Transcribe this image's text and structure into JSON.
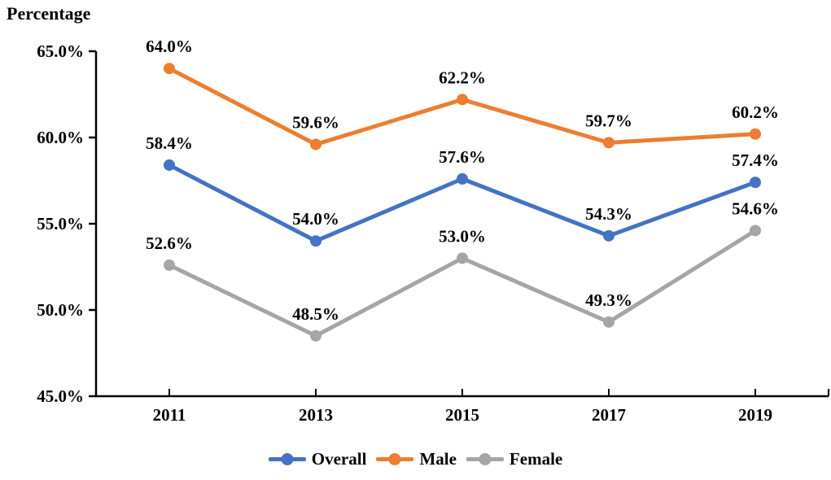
{
  "chart_data": {
    "type": "line",
    "ylabel": "Percentage",
    "categories": [
      "2011",
      "2013",
      "2015",
      "2017",
      "2019"
    ],
    "series": [
      {
        "name": "Overall",
        "color": "#4472C4",
        "values": [
          58.4,
          54.0,
          57.6,
          54.3,
          57.4
        ]
      },
      {
        "name": "Male",
        "color": "#ED7D31",
        "values": [
          64.0,
          59.6,
          62.2,
          59.7,
          60.2
        ]
      },
      {
        "name": "Female",
        "color": "#A5A5A5",
        "values": [
          52.6,
          48.5,
          53.0,
          49.3,
          54.6
        ]
      }
    ],
    "data_labels": {
      "Overall": [
        "58.4%",
        "54.0%",
        "57.6%",
        "54.3%",
        "57.4%"
      ],
      "Male": [
        "64.0%",
        "59.6%",
        "62.2%",
        "59.7%",
        "60.2%"
      ],
      "Female": [
        "52.6%",
        "48.5%",
        "53.0%",
        "49.3%",
        "54.6%"
      ]
    },
    "ylim": [
      45,
      65
    ],
    "yticks": [
      45,
      50,
      55,
      60,
      65
    ],
    "ytick_labels": [
      "45.0%",
      "50.0%",
      "55.0%",
      "60.0%",
      "65.0%"
    ],
    "grid": false,
    "legend_position": "bottom",
    "axis_color": "#000000",
    "text_color": "#000000",
    "background_color": "#ffffff"
  }
}
